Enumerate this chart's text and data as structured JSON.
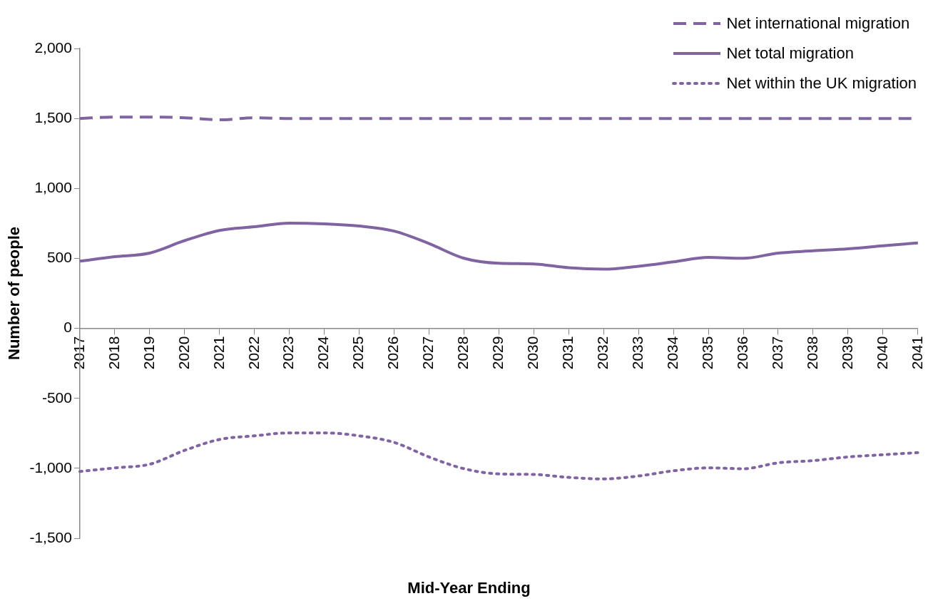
{
  "chart_data": {
    "type": "line",
    "xlabel": "Mid-Year Ending",
    "ylabel": "Number of people",
    "categories": [
      "2017",
      "2018",
      "2019",
      "2020",
      "2021",
      "2022",
      "2023",
      "2024",
      "2025",
      "2026",
      "2027",
      "2028",
      "2029",
      "2030",
      "2031",
      "2032",
      "2033",
      "2034",
      "2035",
      "2036",
      "2037",
      "2038",
      "2039",
      "2040",
      "2041"
    ],
    "series": [
      {
        "name": "Net international migration",
        "color": "#8064a2",
        "line_style": "dashed",
        "values": [
          1500,
          1510,
          1510,
          1505,
          1490,
          1505,
          1500,
          1500,
          1500,
          1500,
          1500,
          1500,
          1500,
          1500,
          1500,
          1500,
          1500,
          1500,
          1500,
          1500,
          1500,
          1500,
          1500,
          1500,
          1500
        ]
      },
      {
        "name": "Net total migration",
        "color": "#8064a2",
        "line_style": "solid",
        "values": [
          480,
          512,
          538,
          627,
          700,
          726,
          752,
          747,
          731,
          695,
          606,
          501,
          465,
          460,
          433,
          423,
          444,
          475,
          507,
          501,
          538,
          554,
          569,
          590,
          611
        ]
      },
      {
        "name": "Net within the UK migration",
        "color": "#8064a2",
        "line_style": "dotted",
        "values": [
          -1023,
          -997,
          -971,
          -872,
          -794,
          -768,
          -747,
          -747,
          -768,
          -815,
          -919,
          -1003,
          -1040,
          -1044,
          -1065,
          -1076,
          -1055,
          -1018,
          -997,
          -1003,
          -961,
          -945,
          -919,
          -903,
          -888
        ]
      }
    ],
    "ylim": [
      -1500,
      2000
    ],
    "yticks": [
      {
        "value": -1500,
        "label": "-1,500"
      },
      {
        "value": -1000,
        "label": "-1,000"
      },
      -500,
      0,
      500,
      {
        "value": 1000,
        "label": "1,000"
      },
      {
        "value": 1500,
        "label": "1,500"
      },
      {
        "value": 2000,
        "label": "2,000"
      }
    ],
    "grid": false,
    "legend": "top right",
    "marker": "none"
  }
}
